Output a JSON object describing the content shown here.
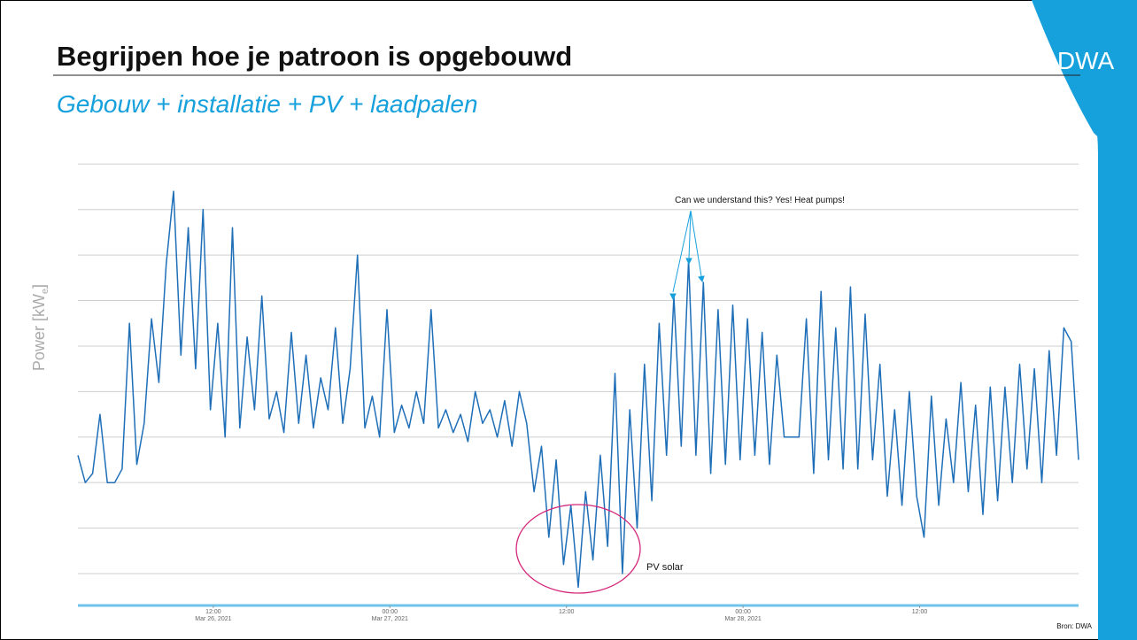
{
  "slide": {
    "title": "Begrijpen hoe je patroon is opgebouwd",
    "subtitle": "Gebouw + installatie + PV + laadpalen",
    "logo": "DWA",
    "source": "Bron: DWA"
  },
  "chart_data": {
    "type": "line",
    "ylabel_parts": [
      "Power [kW",
      "e",
      "]"
    ],
    "annotations": [
      "Can we understand this? Yes! Heat pumps!",
      "PV solar"
    ],
    "xlim": [
      2.8,
      70.8
    ],
    "xticks": [
      {
        "value": 12,
        "label": "12:00",
        "date": "Mar 26, 2021"
      },
      {
        "value": 24,
        "label": "00:00",
        "date": "Mar 27, 2021"
      },
      {
        "value": 36,
        "label": "12:00"
      },
      {
        "value": 48,
        "label": "00:00",
        "date": "Mar 28, 2021"
      },
      {
        "value": 60,
        "label": "12:00"
      }
    ],
    "ylim": [
      -0.7,
      9.2
    ],
    "yticks": [
      0,
      1,
      2,
      3,
      4,
      5,
      6,
      7,
      8,
      9
    ],
    "ytick_labels_shown": false,
    "grid": true,
    "x": [
      2.8,
      3.3,
      3.8,
      4.3,
      4.8,
      5.3,
      5.8,
      6.3,
      6.8,
      7.3,
      7.8,
      8.3,
      8.8,
      9.3,
      9.8,
      10.3,
      10.8,
      11.3,
      11.8,
      12.3,
      12.8,
      13.3,
      13.8,
      14.3,
      14.8,
      15.3,
      15.8,
      16.3,
      16.8,
      17.3,
      17.8,
      18.3,
      18.8,
      19.3,
      19.8,
      20.3,
      20.8,
      21.3,
      21.8,
      22.3,
      22.8,
      23.3,
      23.8,
      24.3,
      24.8,
      25.3,
      25.8,
      26.3,
      26.8,
      27.3,
      27.8,
      28.3,
      28.8,
      29.3,
      29.8,
      30.3,
      30.8,
      31.3,
      31.8,
      32.3,
      32.8,
      33.3,
      33.8,
      34.3,
      34.8,
      35.3,
      35.8,
      36.3,
      36.8,
      37.3,
      37.8,
      38.3,
      38.8,
      39.3,
      39.8,
      40.3,
      40.8,
      41.3,
      41.8,
      42.3,
      42.8,
      43.3,
      43.8,
      44.3,
      44.8,
      45.3,
      45.8,
      46.3,
      46.8,
      47.3,
      47.8,
      48.3,
      48.8,
      49.3,
      49.8,
      50.3,
      50.8,
      51.3,
      51.8,
      52.3,
      52.8,
      53.3,
      53.8,
      54.3,
      54.8,
      55.3,
      55.8,
      56.3,
      56.8,
      57.3,
      57.8,
      58.3,
      58.8,
      59.3,
      59.8,
      60.3,
      60.8,
      61.3,
      61.8,
      62.3,
      62.8,
      63.3,
      63.8,
      64.3,
      64.8,
      65.3,
      65.8,
      66.3,
      66.8,
      67.3,
      67.8,
      68.3,
      68.8,
      69.3,
      69.8,
      70.3,
      70.8
    ],
    "series": [
      {
        "name": "Power",
        "color": "#1f6fb8",
        "values": [
          2.6,
          2.0,
          2.2,
          3.5,
          2.0,
          2.0,
          2.3,
          5.5,
          2.4,
          3.3,
          5.6,
          4.2,
          6.8,
          8.4,
          4.8,
          7.6,
          4.5,
          8.0,
          3.6,
          5.5,
          3.0,
          7.6,
          3.2,
          5.2,
          3.6,
          6.1,
          3.4,
          4.0,
          3.1,
          5.3,
          3.3,
          4.8,
          3.2,
          4.3,
          3.6,
          5.4,
          3.3,
          4.5,
          7.0,
          3.2,
          3.9,
          3.0,
          5.8,
          3.1,
          3.7,
          3.2,
          4.0,
          3.3,
          5.8,
          3.2,
          3.6,
          3.1,
          3.5,
          2.9,
          4.0,
          3.3,
          3.6,
          3.0,
          3.8,
          2.8,
          4.0,
          3.3,
          1.8,
          2.8,
          0.8,
          2.5,
          0.2,
          1.5,
          -0.3,
          1.8,
          0.3,
          2.6,
          0.6,
          4.4,
          0.0,
          3.6,
          1.0,
          4.6,
          1.6,
          5.5,
          2.6,
          6.1,
          2.8,
          6.9,
          2.6,
          6.4,
          2.2,
          5.8,
          2.4,
          5.9,
          2.5,
          5.6,
          2.6,
          5.3,
          2.4,
          4.8,
          3.0,
          3.0,
          3.0,
          5.6,
          2.2,
          6.2,
          2.5,
          5.4,
          2.3,
          6.3,
          2.3,
          5.7,
          2.5,
          4.6,
          1.7,
          3.6,
          1.5,
          4.0,
          1.7,
          0.8,
          3.9,
          1.5,
          3.4,
          2.0,
          4.2,
          1.8,
          3.7,
          1.3,
          4.1,
          1.6,
          4.1,
          2.0,
          4.6,
          2.3,
          4.5,
          2.0,
          4.9,
          2.6,
          5.4,
          5.1,
          2.5
        ]
      }
    ]
  }
}
